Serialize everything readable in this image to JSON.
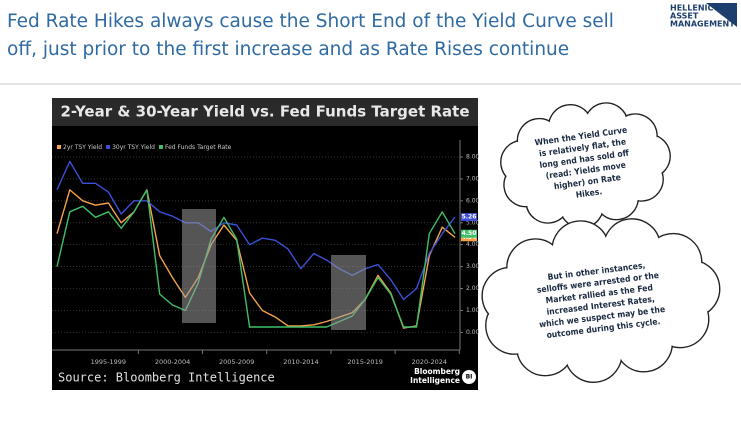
{
  "header": {
    "title_lines": [
      "Fed Rate Hikes always cause the Short End of the Yield Curve sell",
      "off, just prior to the first increase and as Rate Rises continue"
    ],
    "logo": [
      "HELLENIC",
      "ASSET",
      "MANAGEMENT"
    ]
  },
  "chart_data": {
    "type": "line",
    "title": "2-Year & 30-Year Yield vs. Fed Funds Target Rate",
    "categories": [
      null,
      null,
      null,
      null,
      "1995-1999",
      null,
      null,
      null,
      null,
      "2000-2004",
      null,
      null,
      null,
      null,
      "2005-2009",
      null,
      null,
      null,
      null,
      "2010-2014",
      null,
      null,
      null,
      null,
      "2015-2019",
      null,
      null,
      null,
      null,
      "2020-2024",
      null,
      null
    ],
    "series": [
      {
        "name": "2yr TSY Yield",
        "color": "#f5a24a",
        "last_label": "4.34",
        "values": [
          4.5,
          6.5,
          6.0,
          5.8,
          5.9,
          5.0,
          5.5,
          6.5,
          3.5,
          2.5,
          1.6,
          2.5,
          4.0,
          4.9,
          4.2,
          1.8,
          1.0,
          0.7,
          0.3,
          0.3,
          0.35,
          0.5,
          0.7,
          0.9,
          1.5,
          2.6,
          1.8,
          0.2,
          0.3,
          3.5,
          4.8,
          4.34
        ]
      },
      {
        "name": "30yr TSY Yield",
        "color": "#3d4fd6",
        "last_label": "5.26",
        "values": [
          6.5,
          7.8,
          6.8,
          6.8,
          6.4,
          5.4,
          6.0,
          6.0,
          5.5,
          5.3,
          5.0,
          5.0,
          4.6,
          5.0,
          4.9,
          4.0,
          4.3,
          4.2,
          3.8,
          2.9,
          3.6,
          3.3,
          2.9,
          2.6,
          2.9,
          3.1,
          2.4,
          1.5,
          2.0,
          3.6,
          4.5,
          5.26
        ]
      },
      {
        "name": "Fed Funds Target Rate",
        "color": "#3fbf6a",
        "last_label": "4.50",
        "values": [
          3.0,
          5.5,
          5.75,
          5.25,
          5.5,
          4.75,
          5.5,
          6.5,
          1.75,
          1.25,
          1.0,
          2.25,
          4.25,
          5.25,
          4.25,
          0.25,
          0.25,
          0.25,
          0.25,
          0.25,
          0.25,
          0.25,
          0.5,
          0.75,
          1.5,
          2.5,
          1.75,
          0.25,
          0.25,
          4.5,
          5.5,
          4.5
        ]
      }
    ],
    "ylim": [
      -0.8,
      8.5
    ],
    "yticks": [
      {
        "value": 0,
        "label": "0.00"
      },
      {
        "value": 1,
        "label": "1.00"
      },
      {
        "value": 2,
        "label": "2.00"
      },
      {
        "value": 3,
        "label": "3.00"
      },
      {
        "value": 4,
        "label": "4.00"
      },
      {
        "value": 5,
        "label": "5.00"
      },
      {
        "value": 6,
        "label": "6.00"
      },
      {
        "value": 7,
        "label": "7.00"
      },
      {
        "value": 8,
        "label": "8.00"
      }
    ],
    "grid": true,
    "legend": "top-left",
    "source": "Source: Bloomberg Intelligence",
    "brand": [
      "Bloomberg",
      "Intelligence"
    ],
    "brand_badge": "BI"
  },
  "callouts": [
    {
      "lines": [
        "When the Yield Curve",
        "is relatively flat, the",
        "long end has sold off",
        "(read: Yields move",
        "higher) on Rate",
        "Hikes."
      ]
    },
    {
      "lines": [
        "But in other instances,",
        "selloffs were arrested or the",
        "Market rallied as the Fed",
        "increased Interest Rates,",
        "which we suspect may be the",
        "outcome during this cycle."
      ]
    }
  ]
}
